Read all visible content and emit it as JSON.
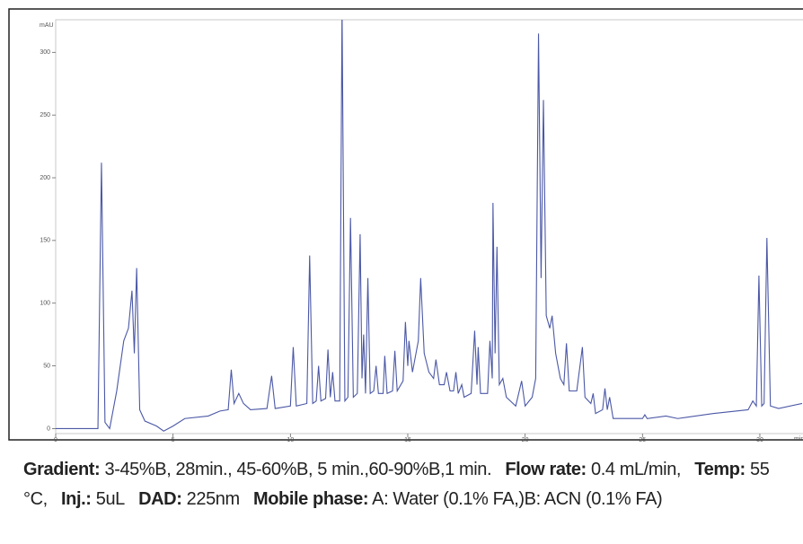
{
  "chart_data": {
    "type": "line",
    "y_label": "mAU",
    "x_label": "min",
    "x": [
      0,
      1.8,
      1.95,
      2.1,
      2.3,
      2.6,
      2.9,
      3.1,
      3.25,
      3.35,
      3.45,
      3.58,
      3.8,
      4.3,
      4.6,
      5.0,
      5.5,
      6.5,
      7.0,
      7.35,
      7.48,
      7.6,
      7.8,
      8.0,
      8.3,
      9.0,
      9.2,
      9.35,
      10.0,
      10.12,
      10.25,
      10.7,
      10.82,
      10.95,
      11.1,
      11.2,
      11.3,
      11.5,
      11.6,
      11.7,
      11.8,
      11.9,
      12.1,
      12.2,
      12.32,
      12.45,
      12.56,
      12.68,
      12.85,
      12.97,
      13.05,
      13.12,
      13.2,
      13.3,
      13.4,
      13.55,
      13.65,
      13.75,
      13.95,
      14.02,
      14.12,
      14.35,
      14.45,
      14.55,
      14.8,
      14.9,
      15.0,
      15.05,
      15.2,
      15.45,
      15.55,
      15.7,
      15.9,
      16.1,
      16.2,
      16.35,
      16.55,
      16.65,
      16.8,
      16.95,
      17.05,
      17.15,
      17.3,
      17.4,
      17.7,
      17.85,
      17.95,
      18.0,
      18.1,
      18.4,
      18.5,
      18.6,
      18.63,
      18.72,
      18.8,
      18.9,
      19.05,
      19.2,
      19.6,
      19.85,
      20.0,
      20.3,
      20.45,
      20.57,
      20.68,
      20.78,
      20.9,
      21.05,
      21.15,
      21.3,
      21.5,
      21.65,
      21.76,
      21.88,
      22.2,
      22.44,
      22.55,
      22.8,
      22.9,
      23.0,
      23.3,
      23.4,
      23.5,
      23.6,
      23.75,
      24.5,
      25.0,
      25.1,
      25.2,
      26.0,
      26.5,
      28.0,
      29.5,
      29.7,
      29.85,
      29.96,
      30.08,
      30.18,
      30.3,
      30.45,
      30.8,
      31.8
    ],
    "series": [
      {
        "color": "#4b58a6",
        "values": [
          0,
          0,
          212,
          5,
          0,
          30,
          70,
          80,
          110,
          60,
          128,
          15,
          6,
          2,
          -2,
          2,
          8,
          10,
          14,
          15,
          47,
          20,
          28,
          20,
          15,
          16,
          42,
          16,
          18,
          65,
          18,
          20,
          138,
          20,
          22,
          50,
          22,
          24,
          63,
          25,
          45,
          22,
          22,
          335,
          22,
          25,
          168,
          25,
          28,
          155,
          40,
          75,
          28,
          120,
          28,
          30,
          50,
          28,
          28,
          58,
          28,
          30,
          62,
          30,
          38,
          85,
          50,
          70,
          45,
          70,
          120,
          60,
          45,
          40,
          55,
          35,
          35,
          45,
          30,
          30,
          45,
          28,
          35,
          25,
          28,
          78,
          35,
          65,
          28,
          28,
          70,
          40,
          180,
          60,
          145,
          35,
          40,
          25,
          18,
          38,
          18,
          25,
          40,
          315,
          120,
          262,
          90,
          80,
          90,
          60,
          40,
          35,
          68,
          30,
          30,
          65,
          25,
          20,
          28,
          12,
          15,
          32,
          15,
          25,
          8,
          8,
          8,
          11,
          8,
          10,
          8,
          12,
          15,
          22,
          18,
          122,
          18,
          20,
          152,
          18,
          16,
          20
        ]
      }
    ],
    "xlim": [
      0,
      31.8
    ],
    "ylim": [
      -4,
      326
    ],
    "xticks": [
      0,
      5,
      10,
      15,
      20,
      25,
      30
    ],
    "yticks": [
      0,
      50,
      100,
      150,
      200,
      250,
      300
    ]
  },
  "caption": [
    {
      "label": "Gradient:",
      "text": "3-45%B, 28min., 45-60%B, 5 min.,60-90%B,1 min."
    },
    {
      "label": "Flow rate:",
      "text": "0.4 mL/min,"
    },
    {
      "label": "Temp:",
      "text": "55 °C,"
    },
    {
      "label": "Inj.:",
      "text": "5uL"
    },
    {
      "label": "DAD:",
      "text": "225nm"
    },
    {
      "label": "Mobile phase:",
      "text": "A: Water (0.1% FA,)B: ACN (0.1% FA)"
    }
  ]
}
